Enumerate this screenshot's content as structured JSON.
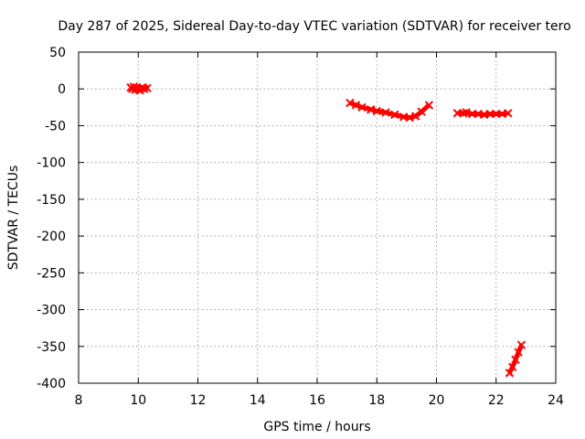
{
  "chart_data": {
    "type": "scatter",
    "title": "Day 287 of 2025, Sidereal Day-to-day VTEC variation (SDTVAR) for receiver tero",
    "xlabel": "GPS time / hours",
    "ylabel": "SDTVAR / TECUs",
    "xlim": [
      8,
      24
    ],
    "ylim": [
      -400,
      50
    ],
    "xticks": [
      "8",
      "10",
      "12",
      "14",
      "16",
      "18",
      "20",
      "22",
      "24"
    ],
    "yticks": [
      "50",
      "0",
      "-50",
      "-100",
      "-150",
      "-200",
      "-250",
      "-300",
      "-350",
      "-400"
    ],
    "grid": true,
    "series_color": "#ff0000",
    "segments": [
      {
        "x": [
          9.75,
          9.8,
          9.85,
          9.9,
          9.95,
          10.0,
          10.05,
          10.1,
          10.15,
          10.2,
          10.3
        ],
        "y": [
          2,
          0,
          3,
          -1,
          2,
          0,
          -2,
          1,
          2,
          0,
          1
        ]
      },
      {
        "x": [
          17.1,
          17.3,
          17.5,
          17.8,
          18.0,
          18.3,
          18.6,
          18.9,
          19.1,
          19.3,
          19.5,
          19.75
        ],
        "y": [
          -19,
          -22,
          -25,
          -28,
          -30,
          -32,
          -35,
          -38,
          -39,
          -37,
          -31,
          -22
        ]
      },
      {
        "x": [
          20.7,
          20.9,
          21.0,
          21.2,
          21.4,
          21.6,
          21.8,
          22.0,
          22.2,
          22.4
        ],
        "y": [
          -33,
          -33,
          -32,
          -34,
          -34,
          -35,
          -34,
          -34,
          -34,
          -33
        ]
      },
      {
        "x": [
          22.45,
          22.55,
          22.65,
          22.75,
          22.85
        ],
        "y": [
          -386,
          -378,
          -368,
          -358,
          -348
        ]
      }
    ]
  }
}
